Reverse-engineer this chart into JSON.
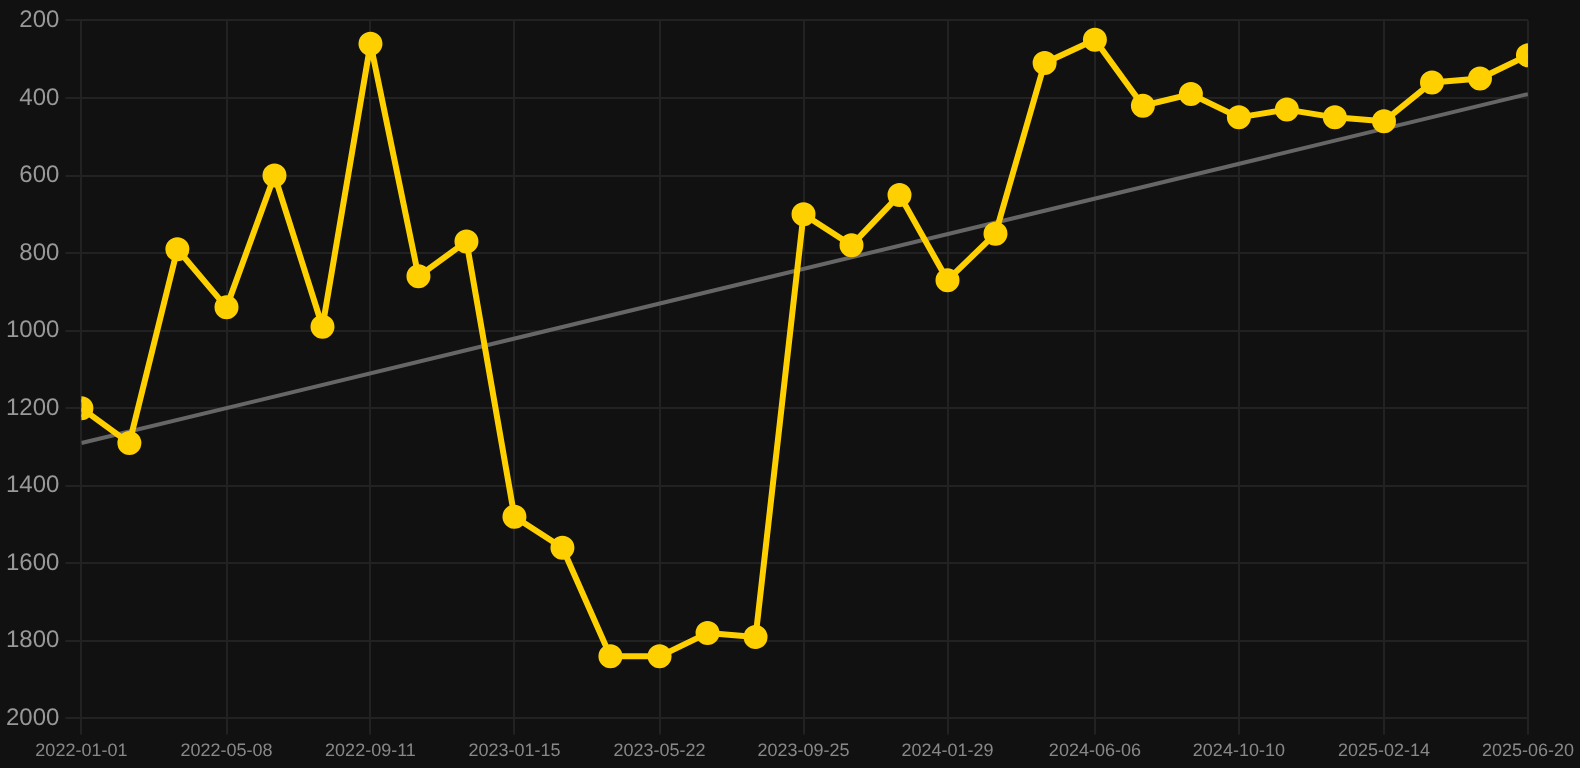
{
  "chart_data": {
    "type": "line",
    "x": [
      "2022-01-01",
      "2022-02-12",
      "2022-03-26",
      "2022-05-08",
      "2022-06-19",
      "2022-07-31",
      "2022-09-11",
      "2022-10-23",
      "2022-12-04",
      "2023-01-15",
      "2023-02-26",
      "2023-04-09",
      "2023-05-22",
      "2023-07-03",
      "2023-08-14",
      "2023-09-25",
      "2023-11-06",
      "2023-12-18",
      "2024-01-29",
      "2024-03-11",
      "2024-04-23",
      "2024-06-06",
      "2024-07-18",
      "2024-08-29",
      "2024-10-10",
      "2024-11-21",
      "2025-01-02",
      "2025-02-14",
      "2025-03-28",
      "2025-05-09",
      "2025-06-20"
    ],
    "series": [
      {
        "color": "#ffd000",
        "marker": "circle",
        "values": [
          1200,
          1290,
          790,
          940,
          600,
          990,
          260,
          860,
          770,
          1480,
          1560,
          1840,
          1840,
          1780,
          1790,
          700,
          780,
          650,
          870,
          750,
          310,
          250,
          420,
          390,
          450,
          430,
          450,
          460,
          360,
          350,
          290
        ]
      },
      {
        "type": "line",
        "color": "#666666",
        "marker": "none",
        "x": [
          "2022-01-01",
          "2025-06-20"
        ],
        "values": [
          1290,
          390
        ]
      }
    ],
    "ylim": [
      2000,
      200
    ],
    "yticks": [
      200,
      400,
      600,
      800,
      1000,
      1200,
      1400,
      1600,
      1800,
      2000
    ],
    "xlim": [
      "2022-01-01",
      "2025-06-20"
    ],
    "xticks": [
      "2022-01-01",
      "2022-05-08",
      "2022-09-11",
      "2023-01-15",
      "2023-05-22",
      "2023-09-25",
      "2024-01-29",
      "2024-06-06",
      "2024-10-10",
      "2025-02-14",
      "2025-06-20"
    ],
    "grid": true,
    "legend": false
  }
}
